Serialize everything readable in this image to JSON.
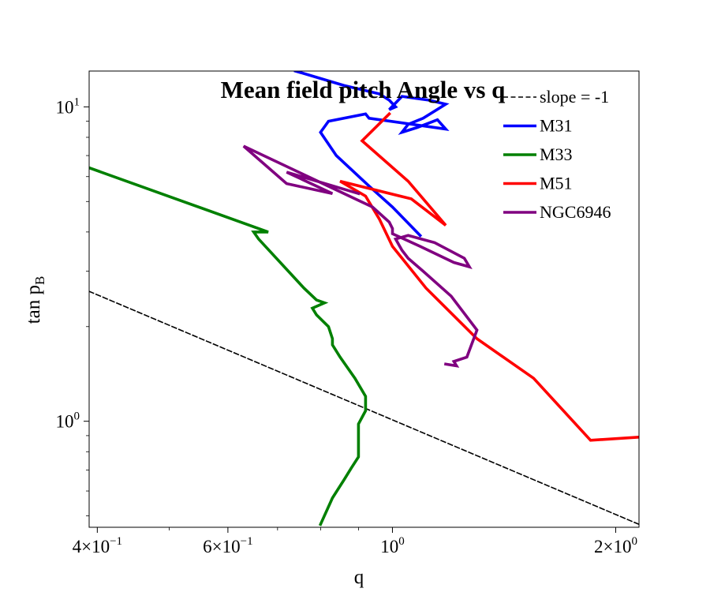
{
  "chart_data": {
    "type": "line",
    "title": "Mean field pitch Angle vs q",
    "xlabel": "q",
    "ylabel": "tan p",
    "ylabel_sub": "B",
    "xscale": "log",
    "yscale": "log",
    "xlim": [
      0.39,
      2.15
    ],
    "ylim": [
      0.46,
      13.0
    ],
    "grid": false,
    "legend_position": "top-right",
    "x_ticks": [
      {
        "value": 0.4,
        "base": "4×10",
        "exp": "−1"
      },
      {
        "value": 0.6,
        "base": "6×10",
        "exp": "−1"
      },
      {
        "value": 1.0,
        "base": "10",
        "exp": "0"
      },
      {
        "value": 2.0,
        "base": "2×10",
        "exp": "0"
      }
    ],
    "y_ticks": [
      {
        "value": 1.0,
        "base": "10",
        "exp": "0"
      },
      {
        "value": 10.0,
        "base": "10",
        "exp": "1"
      }
    ],
    "series": [
      {
        "name": "slope = -1",
        "color": "#000000",
        "dashed": true,
        "x": [
          0.39,
          2.15
        ],
        "y": [
          2.59,
          0.47
        ]
      },
      {
        "name": "M31",
        "color": "#0000ff",
        "dashed": false,
        "x": [
          0.74,
          0.86,
          0.96,
          0.99,
          1.01,
          0.99,
          1.03,
          1.12,
          1.18,
          1.1,
          1.05,
          1.03,
          1.08,
          1.15,
          1.18,
          0.93,
          0.92,
          0.82,
          0.8,
          0.84,
          0.93,
          1.0,
          1.09
        ],
        "y": [
          13.0,
          11.7,
          11.0,
          10.5,
          10.0,
          9.8,
          10.8,
          10.5,
          10.2,
          9.2,
          8.8,
          8.3,
          8.6,
          9.1,
          8.5,
          9.2,
          9.5,
          9.0,
          8.3,
          7.0,
          5.6,
          4.8,
          3.9
        ]
      },
      {
        "name": "M33",
        "color": "#008000",
        "dashed": false,
        "x": [
          0.39,
          0.68,
          0.65,
          0.66,
          0.76,
          0.79,
          0.81,
          0.78,
          0.79,
          0.82,
          0.83,
          0.83,
          0.85,
          0.89,
          0.92,
          0.92,
          0.9,
          0.9,
          0.88,
          0.86,
          0.83,
          0.8
        ],
        "y": [
          6.4,
          4.0,
          4.0,
          3.8,
          2.65,
          2.43,
          2.38,
          2.29,
          2.18,
          2.0,
          1.83,
          1.75,
          1.6,
          1.37,
          1.2,
          1.08,
          0.98,
          0.77,
          0.71,
          0.65,
          0.57,
          0.47
        ]
      },
      {
        "name": "M51",
        "color": "#ff0000",
        "dashed": false,
        "x": [
          0.99,
          0.91,
          1.05,
          1.18,
          1.06,
          0.85,
          0.92,
          0.96,
          1.0,
          1.11,
          1.3,
          1.55,
          1.85,
          2.15
        ],
        "y": [
          9.5,
          7.8,
          5.8,
          4.2,
          5.1,
          5.8,
          5.2,
          4.4,
          3.6,
          2.65,
          1.83,
          1.37,
          0.87,
          0.89
        ]
      },
      {
        "name": "NGC6946",
        "color": "#800080",
        "dashed": false,
        "x": [
          0.9,
          0.72,
          0.83,
          0.72,
          0.63,
          0.94,
          0.99,
          1.0,
          1.0,
          1.09,
          1.21,
          1.27,
          1.25,
          1.14,
          1.05,
          1.01,
          1.03,
          1.05,
          1.1,
          1.2,
          1.3,
          1.26,
          1.21,
          1.22,
          1.18
        ],
        "y": [
          5.3,
          6.2,
          5.3,
          5.7,
          7.5,
          4.8,
          4.3,
          4.1,
          3.95,
          3.6,
          3.2,
          3.1,
          3.3,
          3.7,
          3.9,
          3.8,
          3.5,
          3.3,
          3.0,
          2.5,
          1.95,
          1.6,
          1.55,
          1.5,
          1.52
        ]
      }
    ]
  }
}
